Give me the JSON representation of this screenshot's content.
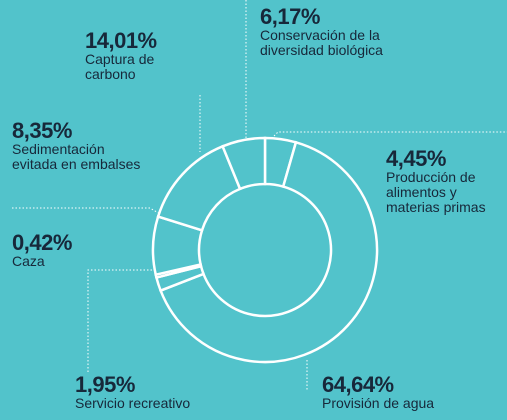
{
  "chart_data": {
    "type": "pie",
    "donut": true,
    "categories": [
      "Producción de alimentos y materias primas",
      "Provisión de agua",
      "Servicio recreativo",
      "Caza",
      "Sedimentación evitada en embalses",
      "Captura de carbono",
      "Conservación de la diversidad biológica"
    ],
    "values": [
      4.45,
      64.64,
      1.95,
      0.42,
      8.35,
      14.01,
      6.17
    ],
    "value_labels": [
      "4,45%",
      "64,64%",
      "1,95%",
      "0,42%",
      "8,35%",
      "14,01%",
      "6,17%"
    ],
    "color": "#52c3cb"
  }
}
